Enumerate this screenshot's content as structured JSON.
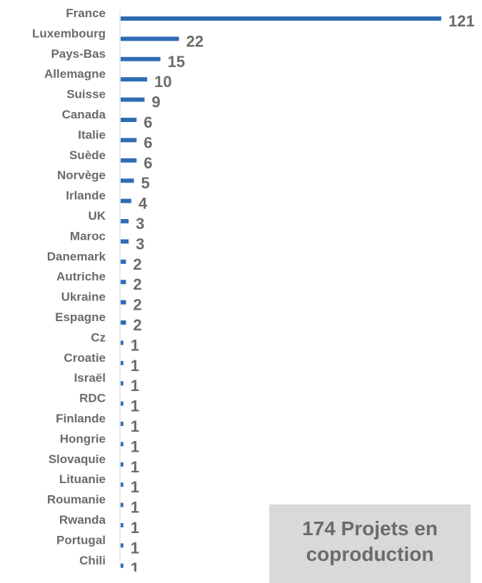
{
  "chart_data": {
    "type": "bar",
    "orientation": "horizontal",
    "categories": [
      "France",
      "Luxembourg",
      "Pays-Bas",
      "Allemagne",
      "Suisse",
      "Canada",
      "Italie",
      "Suède",
      "Norvège",
      "Irlande",
      "UK",
      "Maroc",
      "Danemark",
      "Autriche",
      "Ukraine",
      "Espagne",
      "Cz",
      "Croatie",
      "Israël",
      "RDC",
      "Finlande",
      "Hongrie",
      "Slovaquie",
      "Lituanie",
      "Roumanie",
      "Rwanda",
      "Portugal",
      "Chili"
    ],
    "values": [
      121,
      22,
      15,
      10,
      9,
      6,
      6,
      6,
      5,
      4,
      3,
      3,
      2,
      2,
      2,
      2,
      1,
      1,
      1,
      1,
      1,
      1,
      1,
      1,
      1,
      1,
      1,
      1
    ],
    "xlim": [
      0,
      121
    ],
    "grid": false,
    "bar_color": "#2e6db4",
    "text_color": "#6b6b6b"
  },
  "annotation": {
    "text": "174 Projets en coproduction"
  }
}
